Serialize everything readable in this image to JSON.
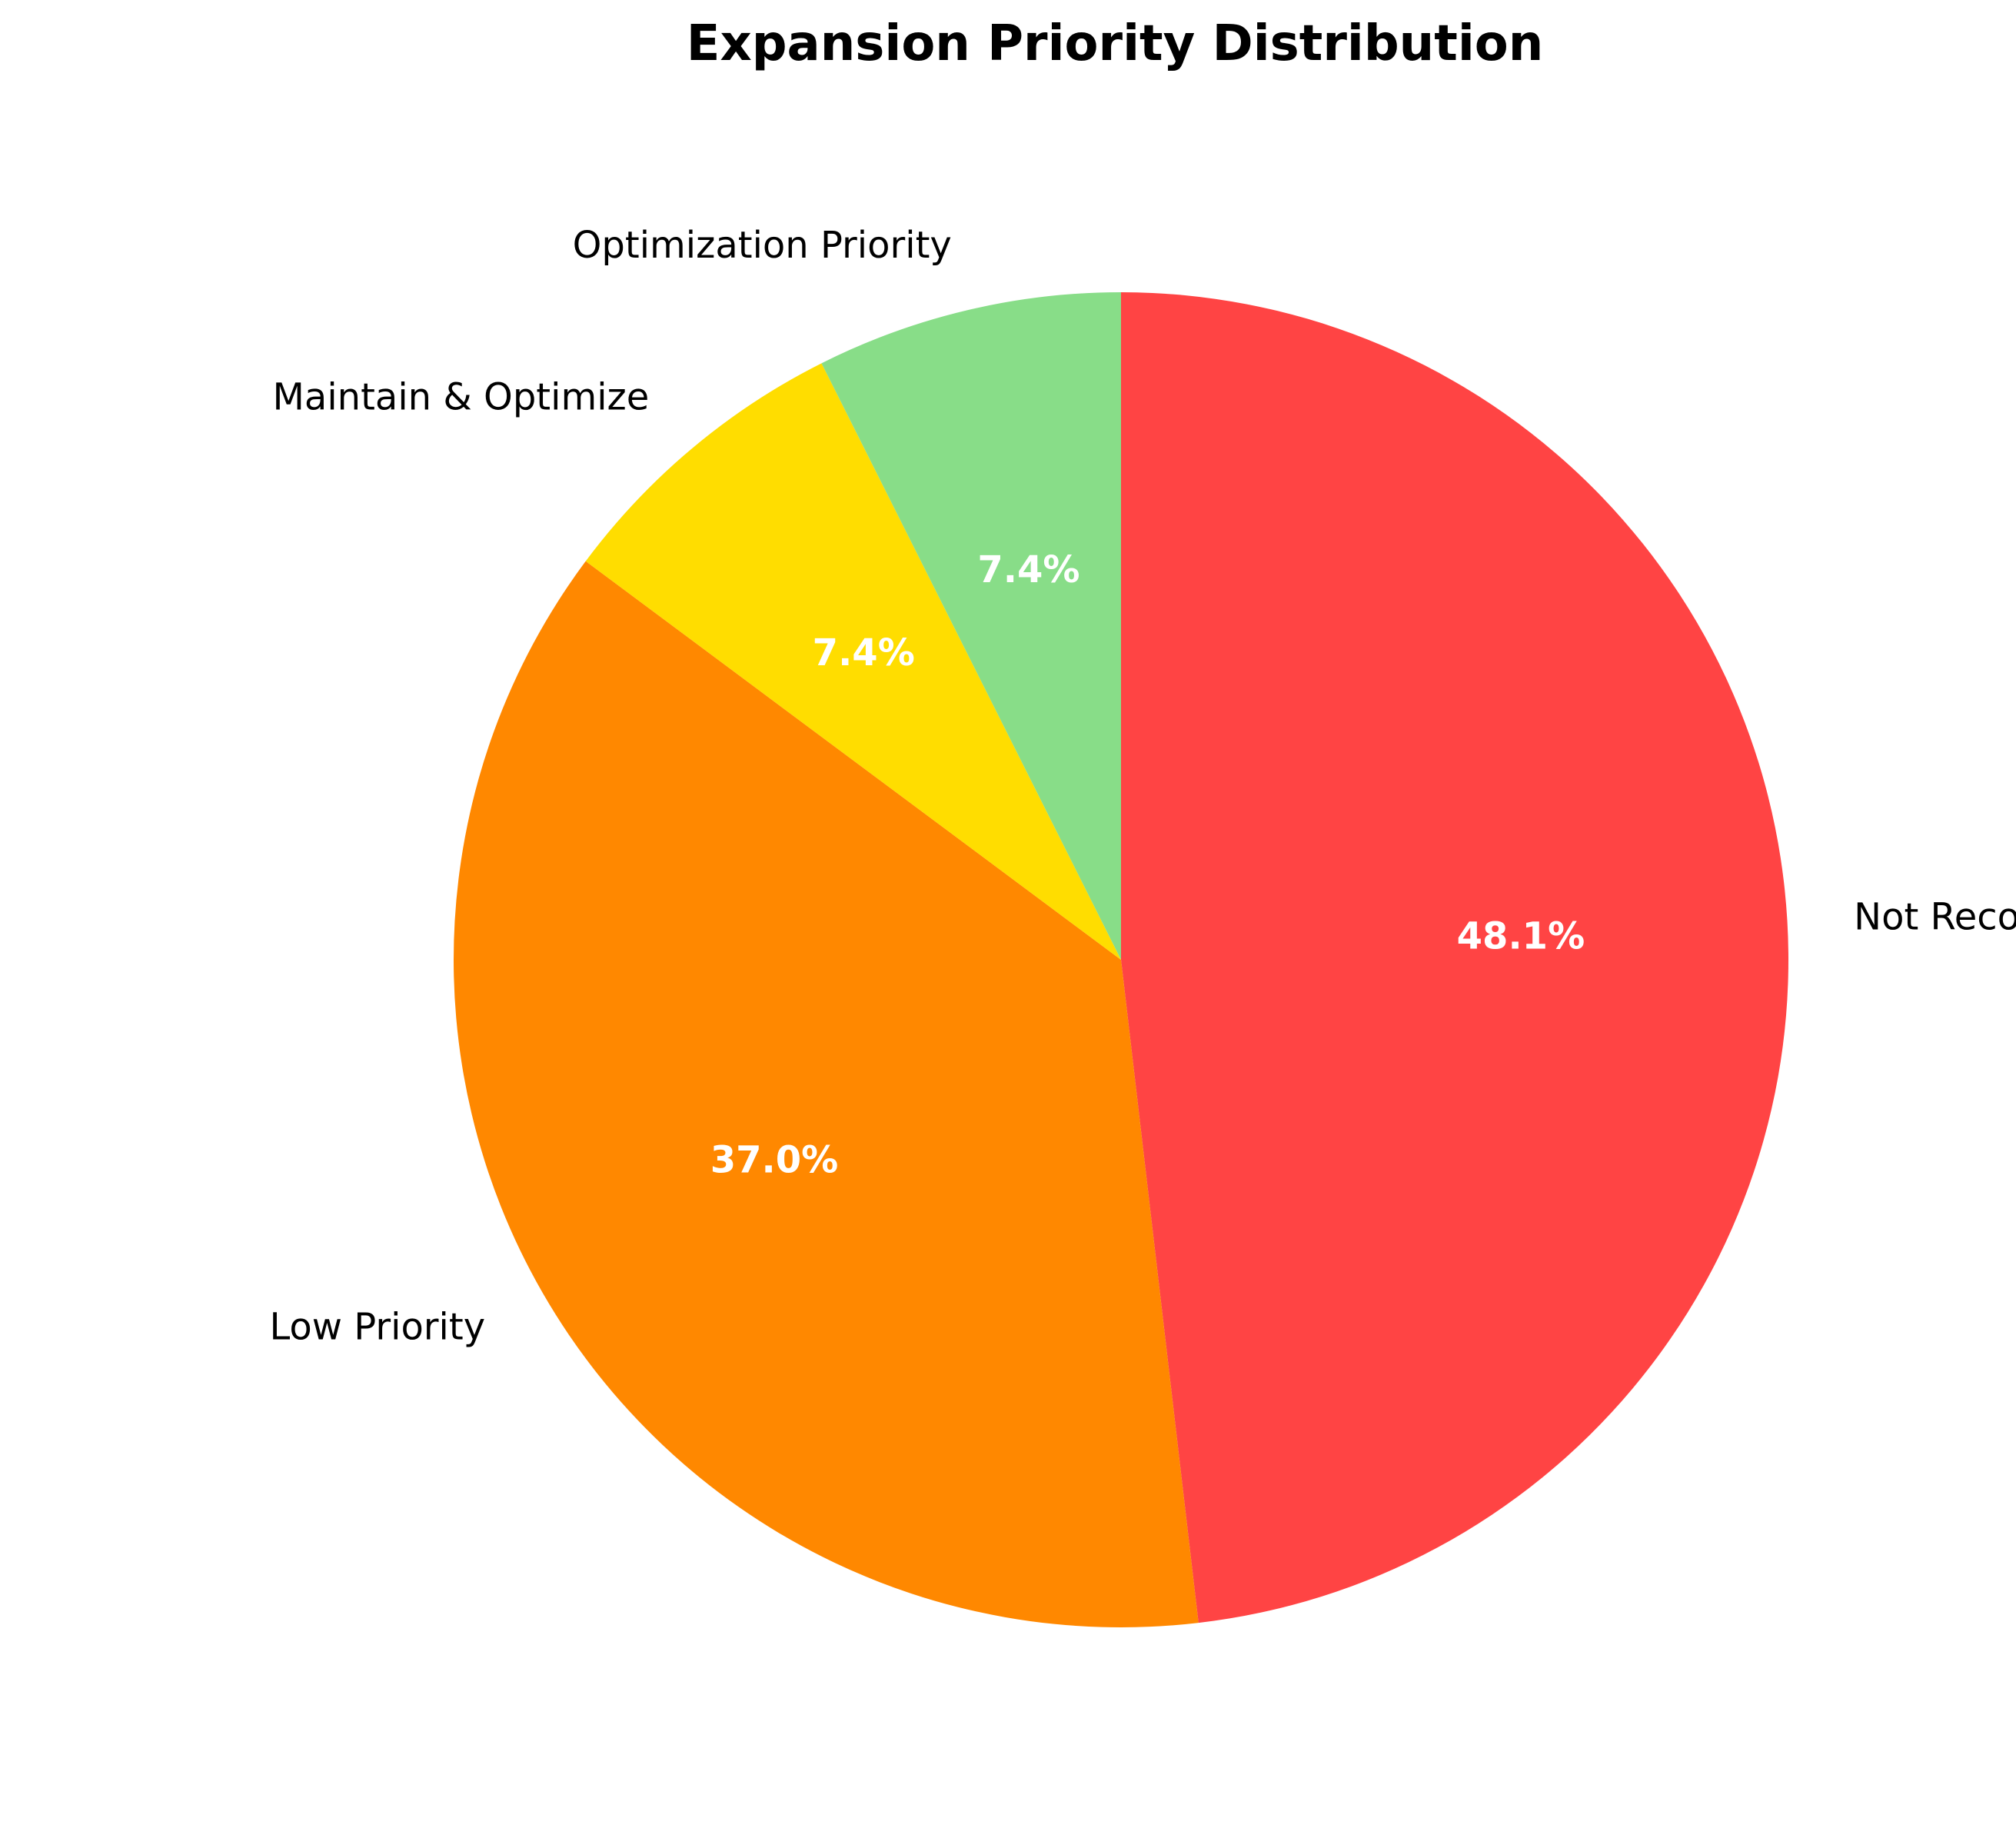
{
  "chart_data": {
    "type": "pie",
    "title": "Expansion Priority Distribution",
    "start_angle_deg": 90,
    "direction": "clockwise",
    "slices": [
      {
        "label": "Not Recommended",
        "value": 48.1,
        "pct_label": "48.1%",
        "color": "#FF4444"
      },
      {
        "label": "Low Priority",
        "value": 37.0,
        "pct_label": "37.0%",
        "color": "#FF8800"
      },
      {
        "label": "Maintain & Optimize",
        "value": 7.4,
        "pct_label": "7.4%",
        "color": "#FFDD00"
      },
      {
        "label": "Optimization Priority",
        "value": 7.4,
        "pct_label": "7.4%",
        "color": "#88DD88"
      }
    ]
  }
}
